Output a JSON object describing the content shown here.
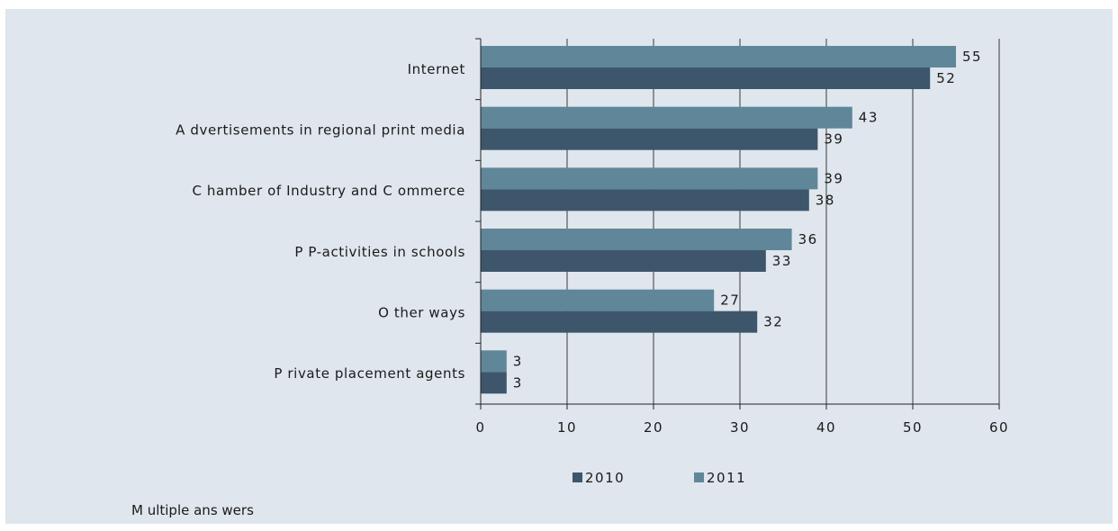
{
  "chart_data": {
    "type": "bar",
    "orientation": "horizontal",
    "categories": [
      "Internet",
      "A dvertisements in regional print media",
      "C hamber of Industry and C ommerce",
      "P P-activities in schools",
      "O ther ways",
      "P rivate placement agents"
    ],
    "series": [
      {
        "name": "2011",
        "values": [
          55,
          43,
          39,
          36,
          27,
          3
        ],
        "color": "#5f8799"
      },
      {
        "name": "2010",
        "values": [
          52,
          39,
          38,
          33,
          32,
          3
        ],
        "color": "#3d566b"
      }
    ],
    "xlim": [
      0,
      60
    ],
    "x_ticks": [
      0,
      10,
      20,
      30,
      40,
      50,
      60
    ],
    "tick_labels": [
      "0",
      "10",
      "20",
      "30",
      "40",
      "50",
      "60"
    ],
    "grid": "vertical",
    "legend": {
      "position": "bottom",
      "entries": [
        {
          "label": "2010",
          "color": "#3d566b"
        },
        {
          "label": "2011",
          "color": "#5f8799"
        }
      ]
    },
    "note": "M ultiple ans wers"
  }
}
